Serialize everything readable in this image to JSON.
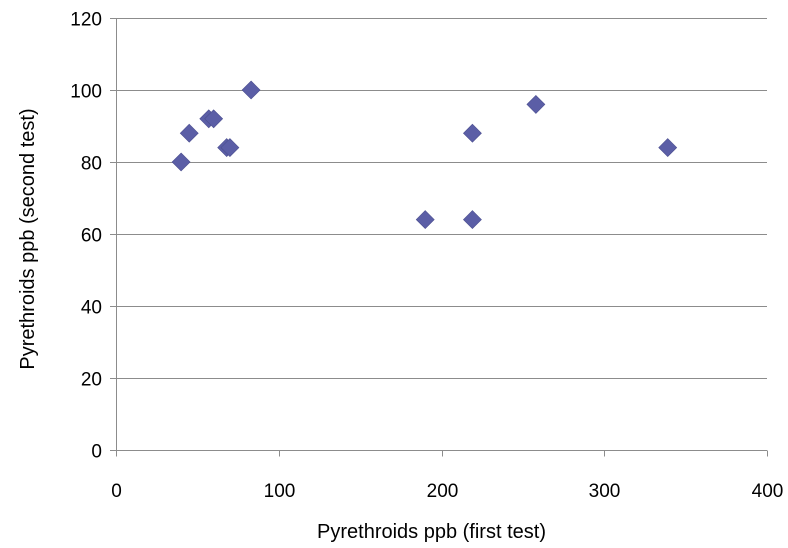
{
  "chart_data": {
    "type": "scatter",
    "title": "",
    "xlabel": "Pyrethroids ppb (first test)",
    "ylabel": "Pyrethroids ppb (second test)",
    "xlim": [
      0,
      400
    ],
    "ylim": [
      0,
      120
    ],
    "xticks": [
      0,
      100,
      200,
      300,
      400
    ],
    "yticks": [
      0,
      20,
      40,
      60,
      80,
      100,
      120
    ],
    "xtick_labels": [
      "0",
      "100",
      "200",
      "300",
      "400"
    ],
    "ytick_labels": [
      "0",
      "20",
      "40",
      "60",
      "80",
      "100",
      "120"
    ],
    "grid": {
      "horizontal": true,
      "vertical": false
    },
    "legend": "none",
    "marker": "diamond",
    "marker_color": "#5B5EA6",
    "series": [
      {
        "points": [
          {
            "x": 40,
            "y": 80
          },
          {
            "x": 45,
            "y": 88
          },
          {
            "x": 57,
            "y": 92
          },
          {
            "x": 60,
            "y": 92
          },
          {
            "x": 68,
            "y": 84
          },
          {
            "x": 70,
            "y": 84
          },
          {
            "x": 83,
            "y": 100
          },
          {
            "x": 190,
            "y": 64
          },
          {
            "x": 219,
            "y": 88
          },
          {
            "x": 219,
            "y": 64
          },
          {
            "x": 258,
            "y": 96
          },
          {
            "x": 339,
            "y": 84
          }
        ]
      }
    ]
  }
}
